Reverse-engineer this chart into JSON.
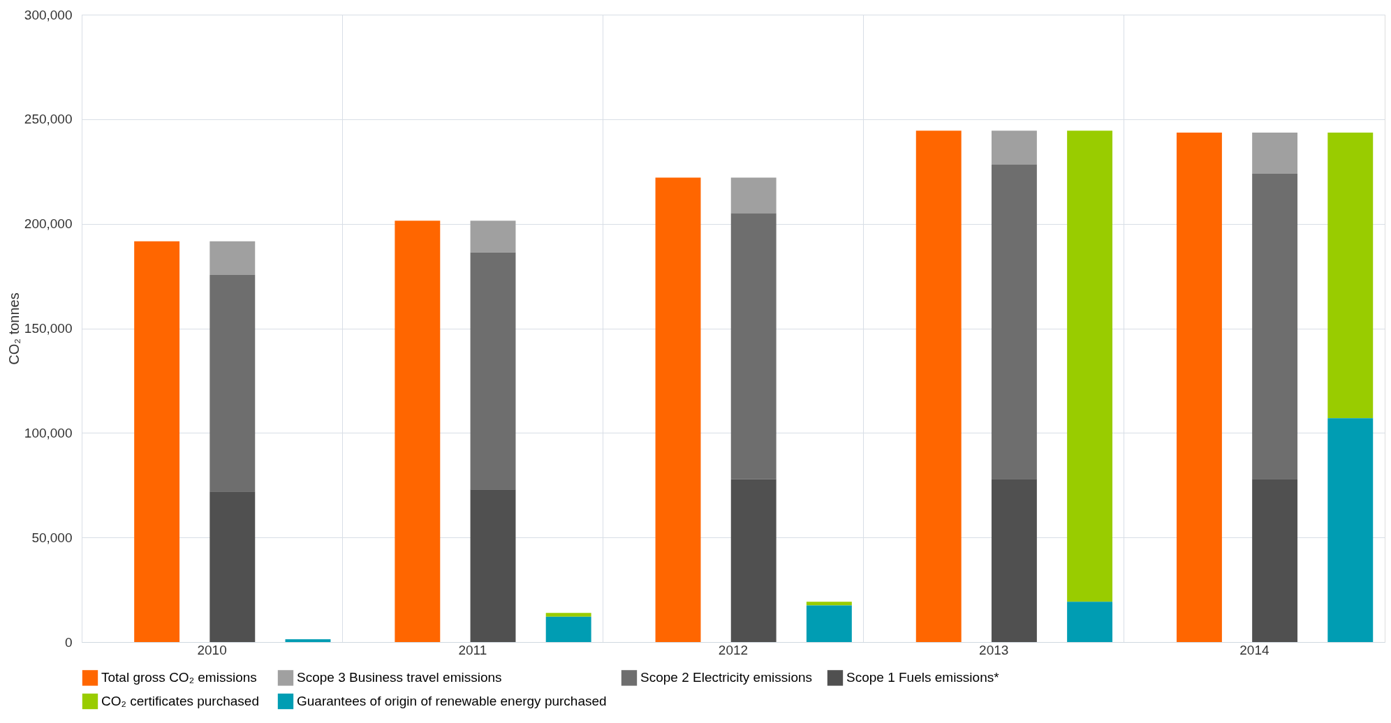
{
  "chart_data": {
    "type": "bar",
    "ylabel": "CO₂  tonnes",
    "categories": [
      "2010",
      "2011",
      "2012",
      "2013",
      "2014"
    ],
    "series": [
      {
        "name": "Total gross CO₂  emissions",
        "color": "#ff6600",
        "values": [
          191600,
          201500,
          222100,
          244500,
          243600
        ]
      },
      {
        "name": "Scope 3 Business travel emissions",
        "color": "#a0a0a0",
        "base": [
          175500,
          186300,
          205100,
          228400,
          223900
        ],
        "values": [
          16100,
          15200,
          17000,
          16100,
          19700
        ]
      },
      {
        "name": "Scope 2 Electricity emissions",
        "color": "#6e6e6e",
        "base": [
          72000,
          73000,
          77900,
          78000,
          78000
        ],
        "values": [
          103500,
          113300,
          127200,
          150400,
          145900
        ]
      },
      {
        "name": "Scope 1 Fuels emissions*",
        "color": "#505050",
        "values": [
          72000,
          73000,
          77900,
          78000,
          78000
        ]
      },
      {
        "name": "CO₂  certificates purchased",
        "color": "#99cc00",
        "base": [
          null,
          12100,
          17500,
          19300,
          107000
        ],
        "values": [
          null,
          1800,
          1800,
          225200,
          136600
        ]
      },
      {
        "name": "Guarantees of origin of renewable energy purchased",
        "color": "#009db3",
        "values": [
          1300,
          12100,
          17500,
          19300,
          107000
        ]
      }
    ],
    "ylim": [
      0,
      300000
    ],
    "yticks": [
      {
        "value": 0,
        "label": "0"
      },
      {
        "value": 50000,
        "label": "50,000"
      },
      {
        "value": 100000,
        "label": "100,000"
      },
      {
        "value": 150000,
        "label": "150,000"
      },
      {
        "value": 200000,
        "label": "200,000"
      },
      {
        "value": 250000,
        "label": "250,000"
      },
      {
        "value": 300000,
        "label": "300,000"
      }
    ],
    "grid": true,
    "legend": "bottom"
  }
}
